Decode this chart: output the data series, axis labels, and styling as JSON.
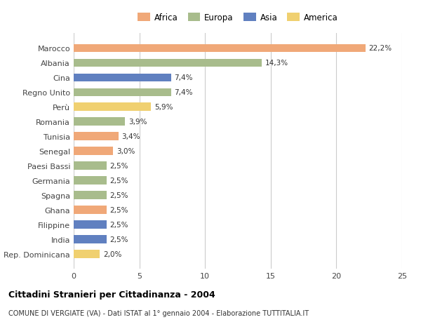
{
  "countries": [
    "Marocco",
    "Albania",
    "Cina",
    "Regno Unito",
    "Perù",
    "Romania",
    "Tunisia",
    "Senegal",
    "Paesi Bassi",
    "Germania",
    "Spagna",
    "Ghana",
    "Filippine",
    "India",
    "Rep. Dominicana"
  ],
  "values": [
    22.2,
    14.3,
    7.4,
    7.4,
    5.9,
    3.9,
    3.4,
    3.0,
    2.5,
    2.5,
    2.5,
    2.5,
    2.5,
    2.5,
    2.0
  ],
  "labels": [
    "22,2%",
    "14,3%",
    "7,4%",
    "7,4%",
    "5,9%",
    "3,9%",
    "3,4%",
    "3,0%",
    "2,5%",
    "2,5%",
    "2,5%",
    "2,5%",
    "2,5%",
    "2,5%",
    "2,0%"
  ],
  "continents": [
    "Africa",
    "Europa",
    "Asia",
    "Europa",
    "America",
    "Europa",
    "Africa",
    "Africa",
    "Europa",
    "Europa",
    "Europa",
    "Africa",
    "Asia",
    "Asia",
    "America"
  ],
  "colors": {
    "Africa": "#F0A878",
    "Europa": "#A8BC8C",
    "Asia": "#6080C0",
    "America": "#F0D070"
  },
  "legend_order": [
    "Africa",
    "Europa",
    "Asia",
    "America"
  ],
  "title": "Cittadini Stranieri per Cittadinanza - 2004",
  "subtitle": "COMUNE DI VERGIATE (VA) - Dati ISTAT al 1° gennaio 2004 - Elaborazione TUTTITALIA.IT",
  "xlim": [
    0,
    25
  ],
  "xticks": [
    0,
    5,
    10,
    15,
    20,
    25
  ],
  "background_color": "#ffffff",
  "grid_color": "#cccccc"
}
